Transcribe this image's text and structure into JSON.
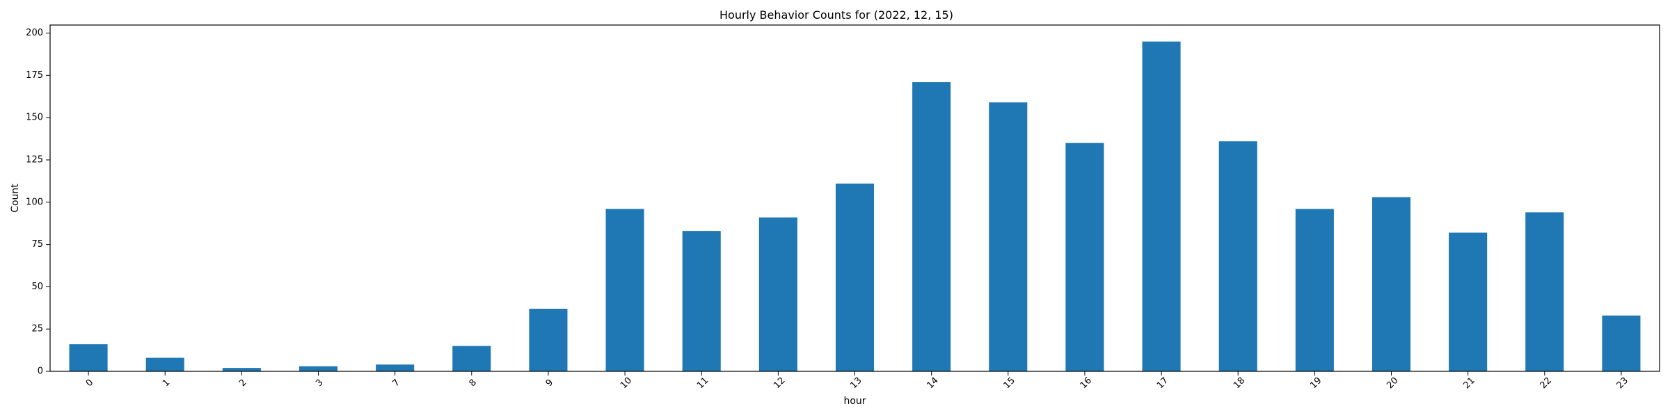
{
  "chart_data": {
    "type": "bar",
    "title": "Hourly Behavior Counts for (2022, 12, 15)",
    "xlabel": "hour",
    "ylabel": "Count",
    "categories": [
      "0",
      "1",
      "2",
      "3",
      "7",
      "8",
      "9",
      "10",
      "11",
      "12",
      "13",
      "14",
      "15",
      "16",
      "17",
      "18",
      "19",
      "20",
      "21",
      "22",
      "23"
    ],
    "values": [
      16,
      8,
      2,
      3,
      4,
      15,
      37,
      96,
      83,
      91,
      111,
      171,
      159,
      135,
      195,
      136,
      96,
      103,
      82,
      94,
      33
    ],
    "ylim": [
      0,
      204.75
    ],
    "yticks": [
      0,
      25,
      50,
      75,
      100,
      125,
      150,
      175,
      200
    ],
    "grid": false,
    "legend": "none",
    "bar_color": "#1f77b4"
  }
}
